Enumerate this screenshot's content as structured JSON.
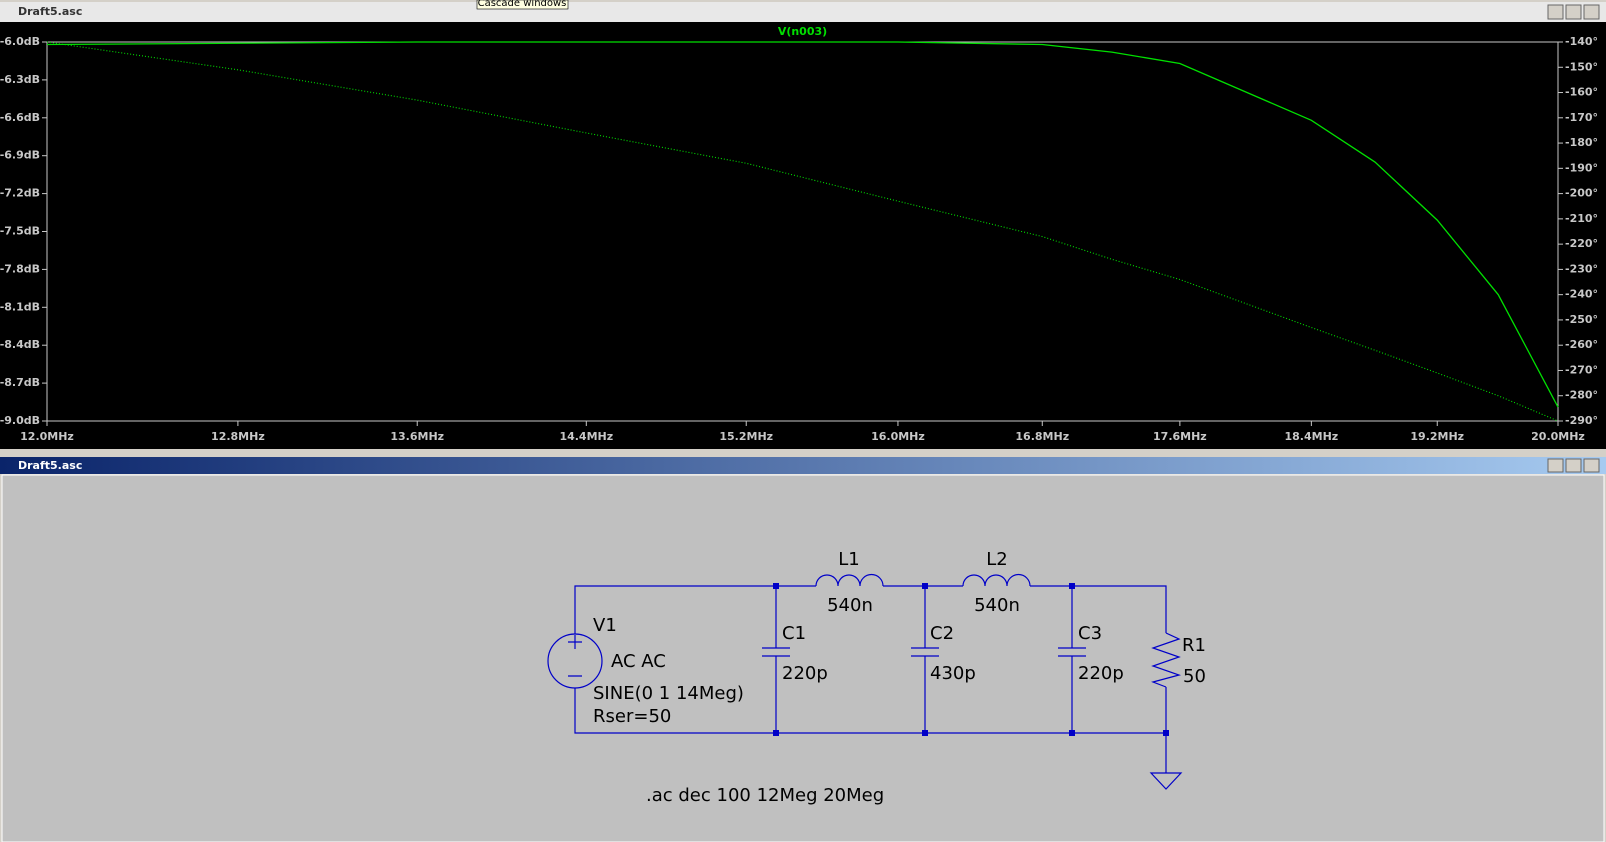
{
  "tooltip": "Cascade windows",
  "plot_window": {
    "title": "Draft5.asc"
  },
  "chart_data": {
    "type": "line",
    "xscale": "log",
    "x": [
      12,
      12.8,
      13.6,
      14.4,
      15.2,
      16,
      16.8,
      17.2,
      17.6,
      18.4,
      18.8,
      19.2,
      19.6,
      20
    ],
    "xlim": [
      12,
      20
    ],
    "xticks": [
      {
        "value": 12,
        "label": "12.0MHz"
      },
      {
        "value": 12.8,
        "label": "12.8MHz"
      },
      {
        "value": 13.6,
        "label": "13.6MHz"
      },
      {
        "value": 14.4,
        "label": "14.4MHz"
      },
      {
        "value": 15.2,
        "label": "15.2MHz"
      },
      {
        "value": 16,
        "label": "16.0MHz"
      },
      {
        "value": 16.8,
        "label": "16.8MHz"
      },
      {
        "value": 17.6,
        "label": "17.6MHz"
      },
      {
        "value": 18.4,
        "label": "18.4MHz"
      },
      {
        "value": 19.2,
        "label": "19.2MHz"
      },
      {
        "value": 20,
        "label": "20.0MHz"
      }
    ],
    "ylim": [
      -9,
      -6
    ],
    "yticks": [
      {
        "value": -6,
        "label": "-6.0dB"
      },
      {
        "value": -6.3,
        "label": "-6.3dB"
      },
      {
        "value": -6.6,
        "label": "-6.6dB"
      },
      {
        "value": -6.9,
        "label": "-6.9dB"
      },
      {
        "value": -7.2,
        "label": "-7.2dB"
      },
      {
        "value": -7.5,
        "label": "-7.5dB"
      },
      {
        "value": -7.8,
        "label": "-7.8dB"
      },
      {
        "value": -8.1,
        "label": "-8.1dB"
      },
      {
        "value": -8.4,
        "label": "-8.4dB"
      },
      {
        "value": -8.7,
        "label": "-8.7dB"
      },
      {
        "value": -9,
        "label": "-9.0dB"
      }
    ],
    "y2lim": [
      -290,
      -140
    ],
    "y2ticks": [
      {
        "value": -140,
        "label": "-140°"
      },
      {
        "value": -150,
        "label": "-150°"
      },
      {
        "value": -160,
        "label": "-160°"
      },
      {
        "value": -170,
        "label": "-170°"
      },
      {
        "value": -180,
        "label": "-180°"
      },
      {
        "value": -190,
        "label": "-190°"
      },
      {
        "value": -200,
        "label": "-200°"
      },
      {
        "value": -210,
        "label": "-210°"
      },
      {
        "value": -220,
        "label": "-220°"
      },
      {
        "value": -230,
        "label": "-230°"
      },
      {
        "value": -240,
        "label": "-240°"
      },
      {
        "value": -250,
        "label": "-250°"
      },
      {
        "value": -260,
        "label": "-260°"
      },
      {
        "value": -270,
        "label": "-270°"
      },
      {
        "value": -280,
        "label": "-280°"
      },
      {
        "value": -290,
        "label": "-290°"
      }
    ],
    "series": [
      {
        "name": "V(n003)",
        "color": "#00e000",
        "values": [
          -6.02,
          -6.01,
          -6.0,
          -6.0,
          -6.0,
          -6.0,
          -6.02,
          -6.08,
          -6.17,
          -6.62,
          -6.95,
          -7.41,
          -8.0,
          -8.89
        ]
      },
      {
        "color": "#00e000",
        "axis": "y2",
        "line_style": "dotted",
        "values": [
          -140,
          -151,
          -163,
          -176,
          -188,
          -203,
          -217,
          -226,
          -234,
          -253,
          -262,
          -271,
          -280,
          -290
        ]
      }
    ]
  },
  "schematic_window": {
    "title": "Draft5.asc",
    "v1": {
      "name": "V1",
      "value": "AC AC",
      "function": "SINE(0 1 14Meg)",
      "parasitic": "Rser=50"
    },
    "l1": {
      "name": "L1",
      "value": "540n"
    },
    "l2": {
      "name": "L2",
      "value": "540n"
    },
    "c1": {
      "name": "C1",
      "value": "220p"
    },
    "c2": {
      "name": "C2",
      "value": "430p"
    },
    "c3": {
      "name": "C3",
      "value": "220p"
    },
    "r1": {
      "name": "R1",
      "value": "50"
    },
    "directive": ".ac dec 100 12Meg 20Meg"
  }
}
